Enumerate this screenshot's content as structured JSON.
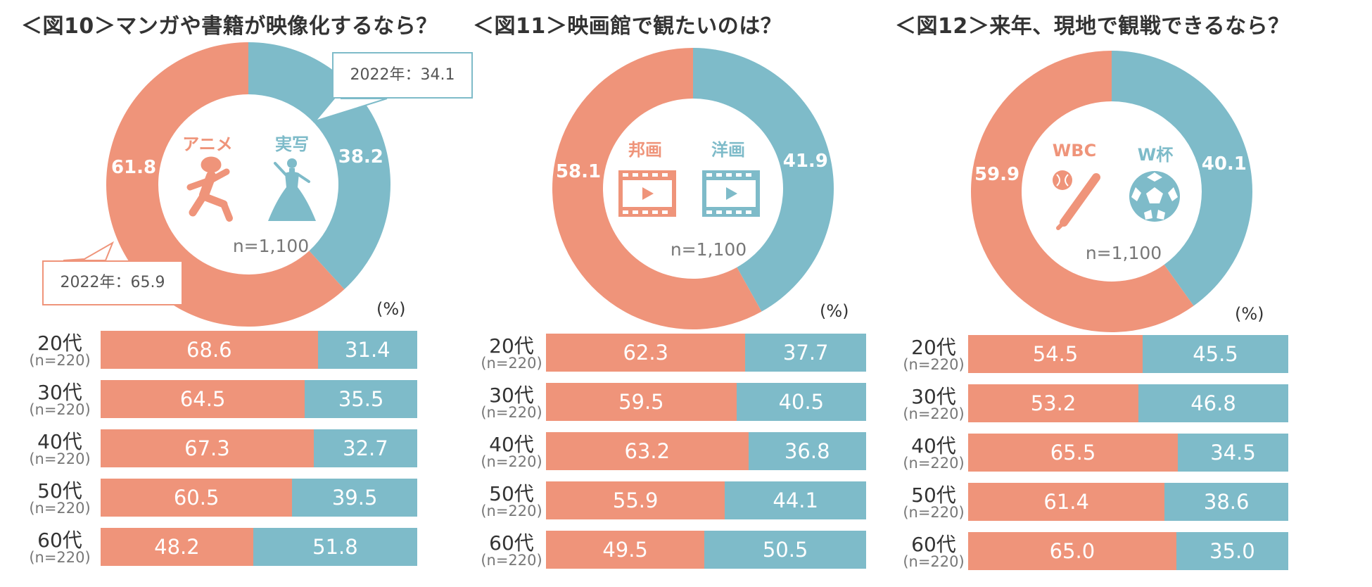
{
  "colors": {
    "orange": "#EF947A",
    "teal": "#7EBBC9",
    "text": "#333333",
    "gray": "#777777"
  },
  "panels": [
    {
      "title": "＜図10＞マンガや書籍が映像化するなら？",
      "left_label": "アニメ",
      "right_label": "実写",
      "left_icon": "running-figure-icon",
      "right_icon": "princess-dress-icon",
      "n_label": "n=1,100",
      "callouts": [
        {
          "text": "2022年：34.1"
        },
        {
          "text": "2022年：65.9"
        }
      ],
      "unit": "(%)"
    },
    {
      "title": "＜図11＞映画館で観たいのは？",
      "left_label": "邦画",
      "right_label": "洋画",
      "left_icon": "film-play-icon",
      "right_icon": "film-play-icon",
      "n_label": "n=1,100",
      "callouts": [],
      "unit": "(%)"
    },
    {
      "title": "＜図12＞来年、現地で観戦できるなら？",
      "left_label": "WBC",
      "right_label": "W杯",
      "left_icon": "baseball-bat-icon",
      "right_icon": "soccer-ball-icon",
      "n_label": "n=1,100",
      "callouts": [],
      "unit": "(%)"
    }
  ],
  "chart_data": [
    {
      "type": "pie",
      "title": "＜図10＞マンガや書籍が映像化するなら？",
      "variant": "donut",
      "categories": [
        "アニメ",
        "実写"
      ],
      "values": [
        61.8,
        38.2
      ],
      "annotations": [
        "2022年：34.1",
        "2022年：65.9"
      ],
      "n": "n=1,100"
    },
    {
      "type": "bar",
      "orientation": "horizontal-stacked",
      "categories": [
        "20代",
        "30代",
        "40代",
        "50代",
        "60代"
      ],
      "category_n": [
        "(n=220)",
        "(n=220)",
        "(n=220)",
        "(n=220)",
        "(n=220)"
      ],
      "series": [
        {
          "name": "アニメ",
          "values": [
            68.6,
            64.5,
            67.3,
            60.5,
            48.2
          ]
        },
        {
          "name": "実写",
          "values": [
            31.4,
            35.5,
            32.7,
            39.5,
            51.8
          ]
        }
      ],
      "unit": "(%)"
    },
    {
      "type": "pie",
      "title": "＜図11＞映画館で観たいのは？",
      "variant": "donut",
      "categories": [
        "邦画",
        "洋画"
      ],
      "values": [
        58.1,
        41.9
      ],
      "n": "n=1,100"
    },
    {
      "type": "bar",
      "orientation": "horizontal-stacked",
      "categories": [
        "20代",
        "30代",
        "40代",
        "50代",
        "60代"
      ],
      "category_n": [
        "(n=220)",
        "(n=220)",
        "(n=220)",
        "(n=220)",
        "(n=220)"
      ],
      "series": [
        {
          "name": "邦画",
          "values": [
            62.3,
            59.5,
            63.2,
            55.9,
            49.5
          ]
        },
        {
          "name": "洋画",
          "values": [
            37.7,
            40.5,
            36.8,
            44.1,
            50.5
          ]
        }
      ],
      "unit": "(%)"
    },
    {
      "type": "pie",
      "title": "＜図12＞来年、現地で観戦できるなら？",
      "variant": "donut",
      "categories": [
        "WBC",
        "W杯"
      ],
      "values": [
        59.9,
        40.1
      ],
      "n": "n=1,100"
    },
    {
      "type": "bar",
      "orientation": "horizontal-stacked",
      "categories": [
        "20代",
        "30代",
        "40代",
        "50代",
        "60代"
      ],
      "category_n": [
        "(n=220)",
        "(n=220)",
        "(n=220)",
        "(n=220)",
        "(n=220)"
      ],
      "series": [
        {
          "name": "WBC",
          "values": [
            54.5,
            53.2,
            65.5,
            61.4,
            65.0
          ]
        },
        {
          "name": "W杯",
          "values": [
            45.5,
            46.8,
            34.5,
            38.6,
            35.0
          ]
        }
      ],
      "unit": "(%)"
    }
  ]
}
